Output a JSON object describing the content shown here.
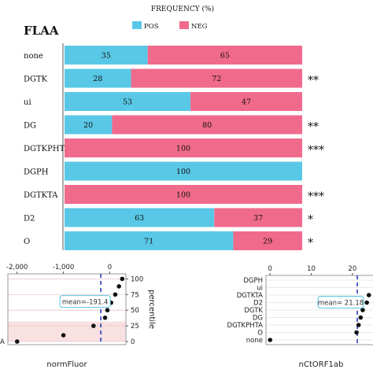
{
  "chart_data": [
    {
      "type": "bar",
      "stacked": true,
      "orientation": "horizontal",
      "title": "FLAA",
      "header": "FREQUENCY (%)",
      "legend_position": "top",
      "colors": {
        "POS": "#59c8e6",
        "NEG": "#f06a8c"
      },
      "categories": [
        "none",
        "DGTK",
        "ui",
        "DG",
        "DGTKPHTA",
        "DGPH",
        "DGTKTA",
        "D2",
        "O"
      ],
      "series": [
        {
          "name": "POS",
          "values": [
            35,
            28,
            53,
            20,
            0,
            100,
            0,
            63,
            71
          ]
        },
        {
          "name": "NEG",
          "values": [
            65,
            72,
            47,
            80,
            100,
            0,
            100,
            37,
            29
          ]
        }
      ],
      "significance": [
        "",
        "**",
        "",
        "**",
        "***",
        "",
        "***",
        "*",
        "*"
      ],
      "xlim": [
        0,
        100
      ]
    },
    {
      "type": "scatter",
      "xlabel": "normFluor",
      "ylabel": "percentile",
      "xticks": [
        "-2,000",
        "-1,000",
        "0"
      ],
      "yticks": [
        "0",
        "25",
        "50",
        "75",
        "100"
      ],
      "xlim": [
        -2200,
        350
      ],
      "ylim": [
        -5,
        108
      ],
      "ylabels_left": [
        "A"
      ],
      "shaded_band": [
        0,
        32
      ],
      "mean_label": "mean=-191.4",
      "mean_value": -191.4,
      "points": [
        {
          "x": -2000,
          "y": 0
        },
        {
          "x": -1000,
          "y": 10
        },
        {
          "x": -350,
          "y": 25
        },
        {
          "x": -100,
          "y": 38
        },
        {
          "x": -50,
          "y": 50
        },
        {
          "x": 30,
          "y": 62
        },
        {
          "x": 120,
          "y": 75
        },
        {
          "x": 200,
          "y": 88
        },
        {
          "x": 270,
          "y": 100
        }
      ]
    },
    {
      "type": "scatter",
      "xlabel": "nCtORF1ab",
      "xticks": [
        "0",
        "10",
        "20"
      ],
      "xlim": [
        -1,
        25
      ],
      "categories": [
        "DGPH",
        "ui",
        "DGTKTA",
        "D2",
        "DGTK",
        "DG",
        "DGTKPHTA",
        "O",
        "none"
      ],
      "mean_label": "mean= 21.18",
      "mean_value": 21.18,
      "points": [
        {
          "category": "none",
          "x": 0
        },
        {
          "category": "O",
          "x": 21
        },
        {
          "category": "DGTKPHTA",
          "x": 21.5
        },
        {
          "category": "DG",
          "x": 22
        },
        {
          "category": "DGTK",
          "x": 22.5
        },
        {
          "category": "D2",
          "x": 23.5
        },
        {
          "category": "DGTKTA",
          "x": 24
        }
      ]
    }
  ]
}
